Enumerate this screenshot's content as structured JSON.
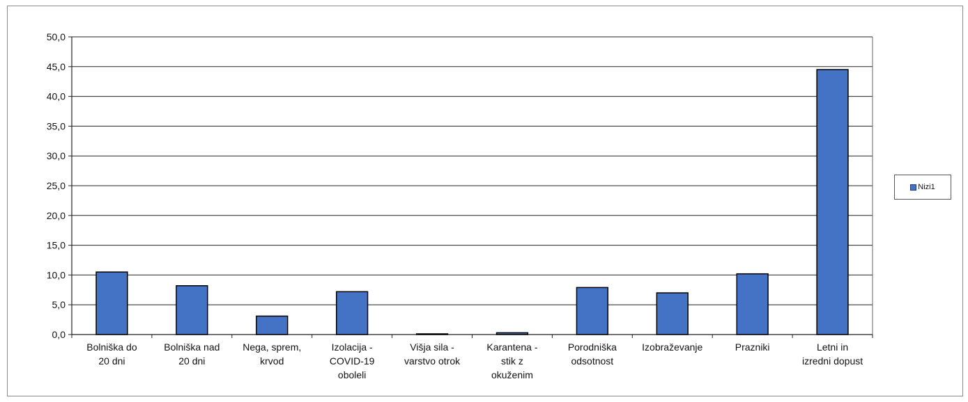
{
  "chart_data": {
    "type": "bar",
    "categories": [
      [
        "Bolniška do",
        "20 dni"
      ],
      [
        "Bolniška nad",
        "20 dni"
      ],
      [
        "Nega, sprem,",
        "krvod"
      ],
      [
        "Izolacija -",
        "COVID-19",
        "oboleli"
      ],
      [
        "Višja sila -",
        "varstvo otrok"
      ],
      [
        "Karantena -",
        "stik z",
        "okuženim"
      ],
      [
        "Porodniška",
        "odsotnost"
      ],
      [
        "Izobraževanje"
      ],
      [
        "Prazniki"
      ],
      [
        "Letni in",
        "izredni dopust"
      ]
    ],
    "series": [
      {
        "name": "Nizi1",
        "values": [
          10.5,
          8.2,
          3.1,
          7.2,
          0.1,
          0.3,
          7.9,
          7.0,
          10.2,
          44.5
        ]
      }
    ],
    "ylim": [
      0,
      50
    ],
    "yticks": [
      "0,0",
      "5,0",
      "10,0",
      "15,0",
      "20,0",
      "25,0",
      "30,0",
      "35,0",
      "40,0",
      "45,0",
      "50,0"
    ],
    "grid": true,
    "legend_position": "right",
    "bar_color": "#4472C4",
    "bar_edge_color": "#000000"
  }
}
